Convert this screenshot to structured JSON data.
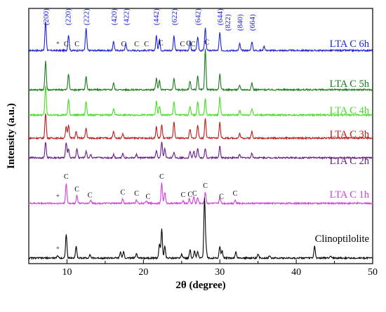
{
  "chart_data": {
    "type": "line",
    "title": "",
    "xlabel": "2θ (degree)",
    "ylabel": "Intensity (a.u.)",
    "xlim": [
      5,
      50
    ],
    "xticks": [
      10,
      20,
      30,
      40,
      50
    ],
    "grid": false,
    "series": [
      {
        "name": "LTA C 6h",
        "color": "#1f24d6",
        "amp": 1.6,
        "peaks": [
          [
            7.2,
            26
          ],
          [
            10.2,
            14
          ],
          [
            12.5,
            20
          ],
          [
            16.1,
            8
          ],
          [
            17.7,
            6
          ],
          [
            21.7,
            13
          ],
          [
            22.1,
            10
          ],
          [
            24.0,
            13
          ],
          [
            26.1,
            8
          ],
          [
            27.1,
            12
          ],
          [
            28.1,
            20
          ],
          [
            30.0,
            16
          ],
          [
            32.6,
            6
          ],
          [
            34.2,
            8
          ],
          [
            35.8,
            4
          ]
        ],
        "annotations": [
          {
            "text": "(200)",
            "x": 7.2
          },
          {
            "text": "(220)",
            "x": 10.1
          },
          {
            "text": "(222)",
            "x": 12.5
          },
          {
            "text": "(420)",
            "x": 16.1
          },
          {
            "text": "(422)",
            "x": 17.7
          },
          {
            "text": "(442)",
            "x": 21.6
          },
          {
            "text": "(622)",
            "x": 24.0
          },
          {
            "text": "(642)",
            "x": 27.1
          },
          {
            "text": "(644)",
            "x": 30.0
          },
          {
            "text": "(822)",
            "x": 31.0
          },
          {
            "text": "(840)",
            "x": 32.6
          },
          {
            "text": "(664)",
            "x": 34.2
          }
        ],
        "markers": [
          {
            "text": "*",
            "x": 8.8
          },
          {
            "text": "C",
            "x": 9.9
          },
          {
            "text": "C",
            "x": 11.3
          },
          {
            "text": "C",
            "x": 17.4
          },
          {
            "text": "C",
            "x": 19.1
          },
          {
            "text": "C",
            "x": 20.4
          },
          {
            "text": "C",
            "x": 22.3
          },
          {
            "text": "C",
            "x": 25.1
          },
          {
            "text": "C",
            "x": 25.9
          },
          {
            "text": "C",
            "x": 26.5
          },
          {
            "text": "C",
            "x": 28.3
          }
        ]
      },
      {
        "name": "LTA C 5h",
        "color": "#1a7a1a",
        "amp": 1.6,
        "peaks": [
          [
            7.2,
            26
          ],
          [
            10.2,
            14
          ],
          [
            12.5,
            12
          ],
          [
            16.1,
            6
          ],
          [
            21.7,
            10
          ],
          [
            22.1,
            8
          ],
          [
            24.0,
            10
          ],
          [
            26.1,
            8
          ],
          [
            27.1,
            12
          ],
          [
            28.1,
            36
          ],
          [
            30.0,
            14
          ],
          [
            32.6,
            4
          ],
          [
            34.2,
            6
          ]
        ],
        "annotations": [],
        "markers": []
      },
      {
        "name": "LTA C 4h",
        "color": "#44dd22",
        "amp": 1.6,
        "peaks": [
          [
            7.2,
            26
          ],
          [
            10.2,
            14
          ],
          [
            12.5,
            12
          ],
          [
            16.1,
            6
          ],
          [
            21.7,
            12
          ],
          [
            22.1,
            8
          ],
          [
            24.0,
            12
          ],
          [
            26.1,
            8
          ],
          [
            27.1,
            12
          ],
          [
            28.1,
            14
          ],
          [
            30.0,
            16
          ],
          [
            32.6,
            4
          ],
          [
            34.2,
            6
          ]
        ],
        "annotations": [],
        "markers": []
      },
      {
        "name": "LTA C 3h",
        "color": "#c01a1a",
        "amp": 1.6,
        "peaks": [
          [
            7.2,
            22
          ],
          [
            9.9,
            10
          ],
          [
            10.2,
            12
          ],
          [
            11.2,
            6
          ],
          [
            12.5,
            9
          ],
          [
            16.1,
            6
          ],
          [
            17.3,
            4
          ],
          [
            21.7,
            10
          ],
          [
            22.4,
            12
          ],
          [
            24.0,
            14
          ],
          [
            26.1,
            8
          ],
          [
            27.1,
            12
          ],
          [
            28.1,
            18
          ],
          [
            30.0,
            14
          ],
          [
            32.6,
            4
          ],
          [
            34.2,
            6
          ]
        ],
        "annotations": [],
        "markers": []
      },
      {
        "name": "LTA C 2h",
        "color": "#6a1a8a",
        "amp": 1.6,
        "peaks": [
          [
            7.2,
            14
          ],
          [
            9.9,
            14
          ],
          [
            10.2,
            8
          ],
          [
            11.3,
            8
          ],
          [
            12.5,
            6
          ],
          [
            13.1,
            3
          ],
          [
            16.1,
            3
          ],
          [
            17.3,
            4
          ],
          [
            19.1,
            3
          ],
          [
            21.7,
            6
          ],
          [
            22.4,
            14
          ],
          [
            22.8,
            8
          ],
          [
            24.0,
            5
          ],
          [
            26.1,
            6
          ],
          [
            26.6,
            6
          ],
          [
            27.1,
            8
          ],
          [
            28.1,
            8
          ],
          [
            30.0,
            10
          ],
          [
            32.6,
            3
          ],
          [
            34.2,
            4
          ]
        ],
        "annotations": [],
        "markers": []
      },
      {
        "name": "LTA C 1h",
        "color": "#d43ee0",
        "amp": 1.6,
        "peaks": [
          [
            9.9,
            18
          ],
          [
            11.3,
            7
          ],
          [
            13.1,
            3
          ],
          [
            17.3,
            4
          ],
          [
            19.1,
            3
          ],
          [
            20.4,
            2
          ],
          [
            22.4,
            18
          ],
          [
            22.8,
            10
          ],
          [
            25.2,
            2
          ],
          [
            26.0,
            4
          ],
          [
            26.6,
            6
          ],
          [
            27.1,
            5
          ],
          [
            28.1,
            10
          ],
          [
            30.0,
            5
          ],
          [
            32.0,
            3
          ]
        ],
        "annotations": [],
        "markers": [
          {
            "text": "*",
            "x": 8.8
          },
          {
            "text": "C",
            "x": 9.9
          },
          {
            "text": "C",
            "x": 11.3
          },
          {
            "text": "C",
            "x": 13.0
          },
          {
            "text": "C",
            "x": 17.3
          },
          {
            "text": "C",
            "x": 19.1
          },
          {
            "text": "C",
            "x": 20.6
          },
          {
            "text": "C",
            "x": 22.4
          },
          {
            "text": "C",
            "x": 25.2
          },
          {
            "text": "C",
            "x": 26.1
          },
          {
            "text": "C",
            "x": 26.7
          },
          {
            "text": "C",
            "x": 28.1
          },
          {
            "text": "C",
            "x": 30.2
          },
          {
            "text": "C",
            "x": 32.0
          }
        ]
      },
      {
        "name": "Clinoptilolite",
        "color": "#000000",
        "amp": 1.7,
        "peaks": [
          [
            8.8,
            2
          ],
          [
            9.9,
            20
          ],
          [
            11.2,
            10
          ],
          [
            13.0,
            3
          ],
          [
            17.0,
            5
          ],
          [
            17.4,
            5
          ],
          [
            19.1,
            4
          ],
          [
            22.1,
            12
          ],
          [
            22.4,
            24
          ],
          [
            22.8,
            10
          ],
          [
            25.0,
            3
          ],
          [
            26.1,
            7
          ],
          [
            26.7,
            6
          ],
          [
            27.1,
            6
          ],
          [
            28.0,
            50
          ],
          [
            28.2,
            8
          ],
          [
            30.0,
            10
          ],
          [
            30.3,
            6
          ],
          [
            32.1,
            5
          ],
          [
            35.0,
            3
          ],
          [
            36.5,
            2
          ],
          [
            42.4,
            10
          ],
          [
            44.5,
            2
          ]
        ],
        "annotations": [],
        "markers": [
          {
            "text": "*",
            "x": 8.8
          }
        ]
      }
    ]
  }
}
